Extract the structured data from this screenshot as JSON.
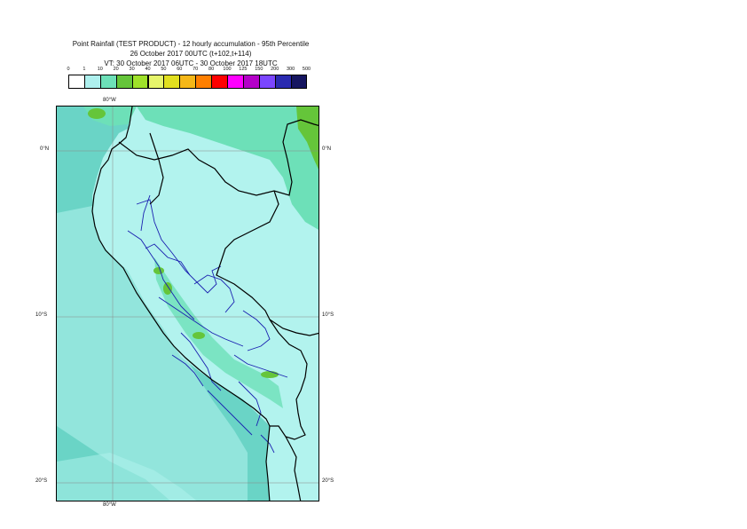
{
  "title": {
    "line1": "Point Rainfall (TEST PRODUCT) - 12 hourly accumulation - 95th Percentile",
    "line2": "26 October 2017 00UTC (t+102,t+114)",
    "line3": "VT: 30 October 2017 06UTC - 30 October 2017 18UTC"
  },
  "legend": {
    "ticks": [
      "0",
      "1",
      "10",
      "20",
      "30",
      "40",
      "50",
      "60",
      "70",
      "80",
      "100",
      "125",
      "150",
      "200",
      "300",
      "500"
    ],
    "colors": [
      "#ffffff",
      "#aef0ee",
      "#6de0b8",
      "#65c53a",
      "#9fe12a",
      "#e6f56b",
      "#e1df1f",
      "#f5b718",
      "#ff7f00",
      "#ff0000",
      "#ff00ff",
      "#b400c8",
      "#7b46ff",
      "#2a2ab0",
      "#151560"
    ]
  },
  "axes": {
    "lon_top": "80°W",
    "lon_bottom": "80°W",
    "lat_labels": [
      "0°N",
      "10°S",
      "20°S"
    ]
  },
  "map_colors": {
    "sea": "#6ad4c6",
    "land": "#b2f3ee",
    "wet": "#6de0b8",
    "heavy": "#65c53a",
    "coast": "#000000",
    "regions": "#1a20b0",
    "grid": "#888888"
  }
}
